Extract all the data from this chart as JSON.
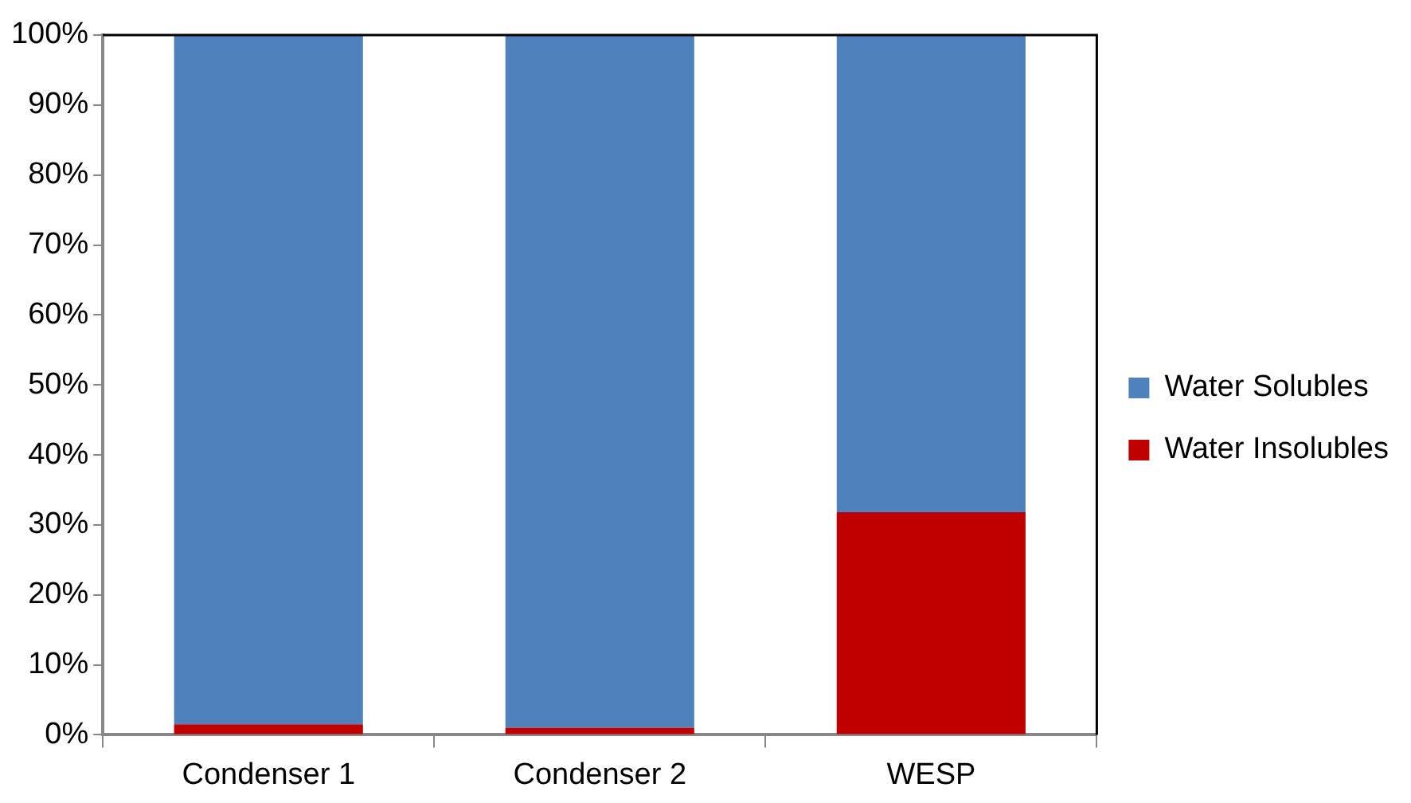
{
  "chart_data": {
    "type": "bar",
    "stacked": true,
    "categories": [
      "Condenser 1",
      "Condenser 2",
      "WESP"
    ],
    "series": [
      {
        "name": "Water Insolubles",
        "color": "#c00000",
        "values": [
          1.5,
          1.0,
          31.8
        ]
      },
      {
        "name": "Water Solubles",
        "color": "#4f81bd",
        "values": [
          98.5,
          99.0,
          68.2
        ]
      }
    ],
    "ylim": [
      0,
      100
    ],
    "yticks": [
      {
        "value": 0,
        "label": "0%"
      },
      {
        "value": 10,
        "label": "10%"
      },
      {
        "value": 20,
        "label": "20%"
      },
      {
        "value": 30,
        "label": "30%"
      },
      {
        "value": 40,
        "label": "40%"
      },
      {
        "value": 50,
        "label": "50%"
      },
      {
        "value": 60,
        "label": "60%"
      },
      {
        "value": 70,
        "label": "70%"
      },
      {
        "value": 80,
        "label": "80%"
      },
      {
        "value": 90,
        "label": "90%"
      },
      {
        "value": 100,
        "label": "100%"
      }
    ],
    "grid": false,
    "legend": "right"
  }
}
